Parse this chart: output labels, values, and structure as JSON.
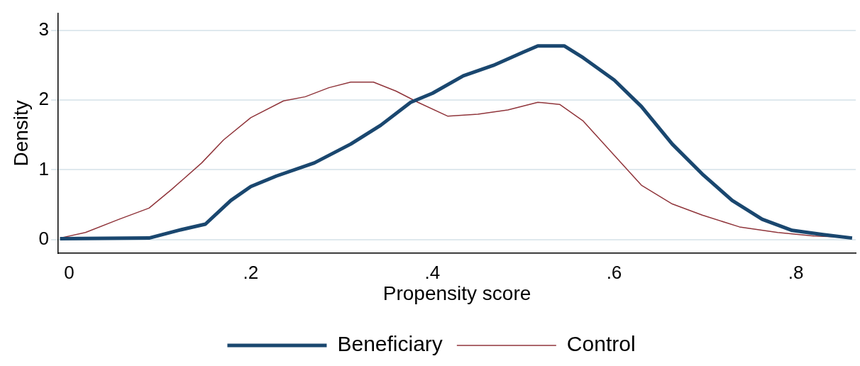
{
  "chart_data": {
    "type": "line",
    "xlabel": "Propensity score",
    "ylabel": "Density",
    "xlim": [
      -0.012,
      0.866
    ],
    "ylim": [
      -0.2,
      3.25
    ],
    "xticks": [
      0,
      {
        "value": 0.2,
        "label": ".2"
      },
      {
        "value": 0.4,
        "label": ".4"
      },
      {
        "value": 0.6,
        "label": ".6"
      },
      {
        "value": 0.8,
        "label": ".8"
      }
    ],
    "yticks": [
      0,
      1,
      2,
      3
    ],
    "grid": "y",
    "legend": "bottom",
    "marker": "none",
    "line_style": "solid",
    "series": [
      {
        "name": "Beneficiary",
        "color": "#1a476f",
        "x": [
          -0.01,
          0.088,
          0.12,
          0.15,
          0.178,
          0.2,
          0.228,
          0.27,
          0.31,
          0.343,
          0.376,
          0.4,
          0.434,
          0.467,
          0.5,
          0.516,
          0.545,
          0.566,
          0.6,
          0.63,
          0.664,
          0.697,
          0.73,
          0.763,
          0.796,
          0.83,
          0.862
        ],
        "values": [
          0.01,
          0.02,
          0.13,
          0.22,
          0.56,
          0.76,
          0.91,
          1.1,
          1.37,
          1.64,
          1.97,
          2.1,
          2.35,
          2.5,
          2.69,
          2.78,
          2.78,
          2.61,
          2.29,
          1.91,
          1.37,
          0.94,
          0.56,
          0.29,
          0.13,
          0.07,
          0.02
        ]
      },
      {
        "name": "Control",
        "color": "#90353b",
        "x": [
          -0.01,
          0.018,
          0.055,
          0.088,
          0.113,
          0.146,
          0.17,
          0.2,
          0.236,
          0.26,
          0.286,
          0.31,
          0.335,
          0.36,
          0.384,
          0.417,
          0.45,
          0.483,
          0.516,
          0.54,
          0.566,
          0.6,
          0.63,
          0.664,
          0.697,
          0.738,
          0.78,
          0.82,
          0.862
        ],
        "values": [
          0.02,
          0.1,
          0.29,
          0.45,
          0.72,
          1.1,
          1.43,
          1.75,
          1.99,
          2.05,
          2.18,
          2.26,
          2.26,
          2.13,
          1.97,
          1.77,
          1.8,
          1.86,
          1.97,
          1.94,
          1.7,
          1.21,
          0.78,
          0.51,
          0.35,
          0.18,
          0.1,
          0.05,
          0.03
        ]
      }
    ]
  }
}
